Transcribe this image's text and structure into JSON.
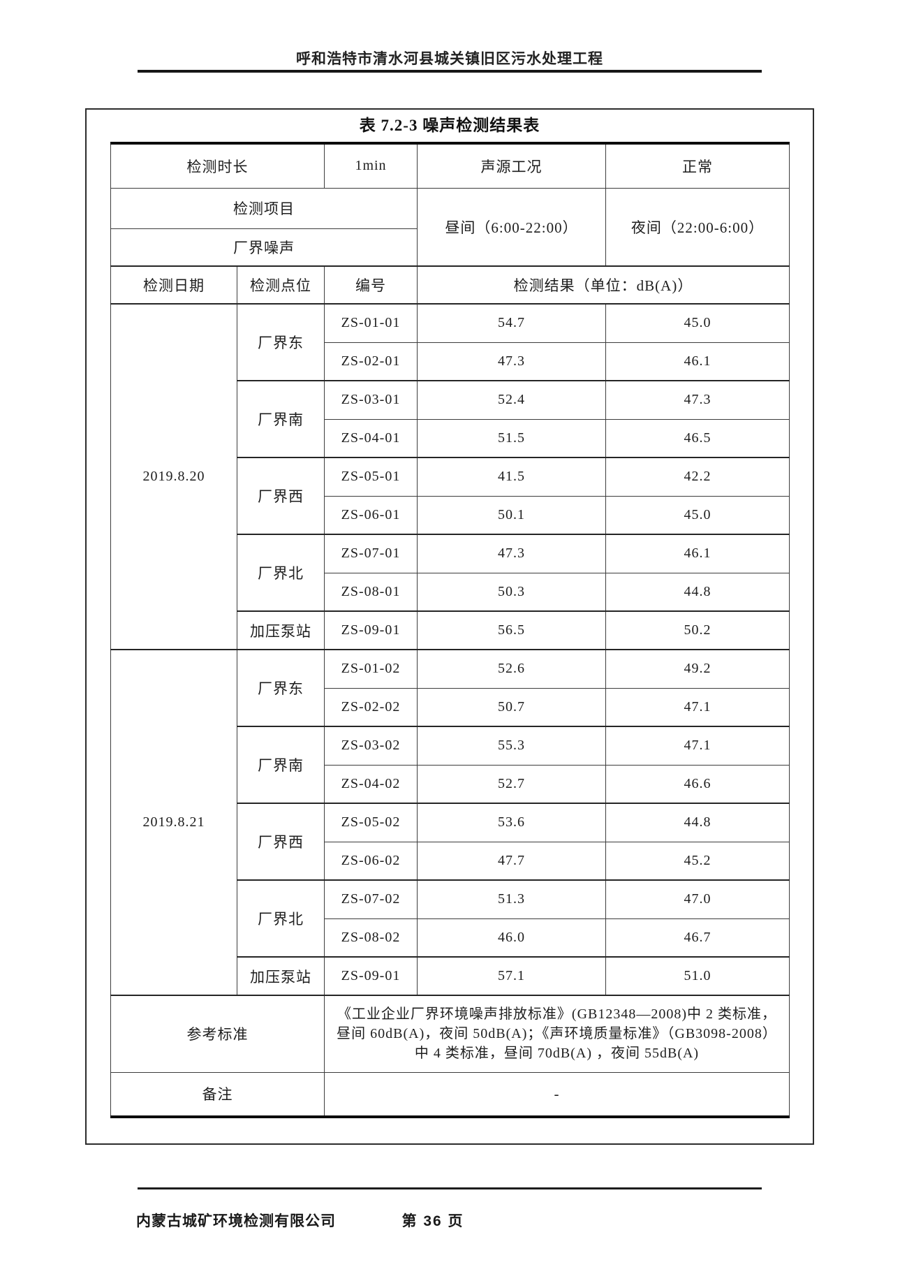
{
  "page": {
    "header": {
      "project_title": "呼和浩特市清水河县城关镇旧区污水处理工程"
    },
    "footer": {
      "company": "内蒙古城矿环境检测有限公司",
      "page_label": "第 36 页"
    }
  },
  "table": {
    "title": "表 7.2-3 噪声检测结果表",
    "info": {
      "duration_label": "检测时长",
      "duration_value": "1min",
      "condition_label": "声源工况",
      "condition_value": "正常",
      "item_label": "检测项目",
      "item_value": "厂界噪声",
      "daytime_label": "昼间（6:00-22:00）",
      "night_label": "夜间（22:00-6:00）"
    },
    "columns": {
      "date": "检测日期",
      "point": "检测点位",
      "code": "编号",
      "result": "检测结果（单位：dB(A)）"
    },
    "groups": [
      {
        "date": "2019.8.20",
        "points": [
          {
            "name": "厂界东",
            "rows": [
              {
                "code": "ZS-01-01",
                "day": "54.7",
                "night": "45.0"
              },
              {
                "code": "ZS-02-01",
                "day": "47.3",
                "night": "46.1"
              }
            ]
          },
          {
            "name": "厂界南",
            "rows": [
              {
                "code": "ZS-03-01",
                "day": "52.4",
                "night": "47.3"
              },
              {
                "code": "ZS-04-01",
                "day": "51.5",
                "night": "46.5"
              }
            ]
          },
          {
            "name": "厂界西",
            "rows": [
              {
                "code": "ZS-05-01",
                "day": "41.5",
                "night": "42.2"
              },
              {
                "code": "ZS-06-01",
                "day": "50.1",
                "night": "45.0"
              }
            ]
          },
          {
            "name": "厂界北",
            "rows": [
              {
                "code": "ZS-07-01",
                "day": "47.3",
                "night": "46.1"
              },
              {
                "code": "ZS-08-01",
                "day": "50.3",
                "night": "44.8"
              }
            ]
          },
          {
            "name": "加压泵站",
            "rows": [
              {
                "code": "ZS-09-01",
                "day": "56.5",
                "night": "50.2"
              }
            ]
          }
        ]
      },
      {
        "date": "2019.8.21",
        "points": [
          {
            "name": "厂界东",
            "rows": [
              {
                "code": "ZS-01-02",
                "day": "52.6",
                "night": "49.2"
              },
              {
                "code": "ZS-02-02",
                "day": "50.7",
                "night": "47.1"
              }
            ]
          },
          {
            "name": "厂界南",
            "rows": [
              {
                "code": "ZS-03-02",
                "day": "55.3",
                "night": "47.1"
              },
              {
                "code": "ZS-04-02",
                "day": "52.7",
                "night": "46.6"
              }
            ]
          },
          {
            "name": "厂界西",
            "rows": [
              {
                "code": "ZS-05-02",
                "day": "53.6",
                "night": "44.8"
              },
              {
                "code": "ZS-06-02",
                "day": "47.7",
                "night": "45.2"
              }
            ]
          },
          {
            "name": "厂界北",
            "rows": [
              {
                "code": "ZS-07-02",
                "day": "51.3",
                "night": "47.0"
              },
              {
                "code": "ZS-08-02",
                "day": "46.0",
                "night": "46.7"
              }
            ]
          },
          {
            "name": "加压泵站",
            "rows": [
              {
                "code": "ZS-09-01",
                "day": "57.1",
                "night": "51.0"
              }
            ]
          }
        ]
      }
    ],
    "reference": {
      "label": "参考标准",
      "lines": [
        "《工业企业厂界环境噪声排放标准》(GB12348—2008)中 2 类标准，",
        "昼间 60dB(A)，夜间 50dB(A)；《声环境质量标准》（GB3098-2008）",
        "中 4 类标准，昼间 70dB(A) ，夜间 55dB(A)"
      ]
    },
    "remark": {
      "label": "备注",
      "value": "-"
    }
  }
}
